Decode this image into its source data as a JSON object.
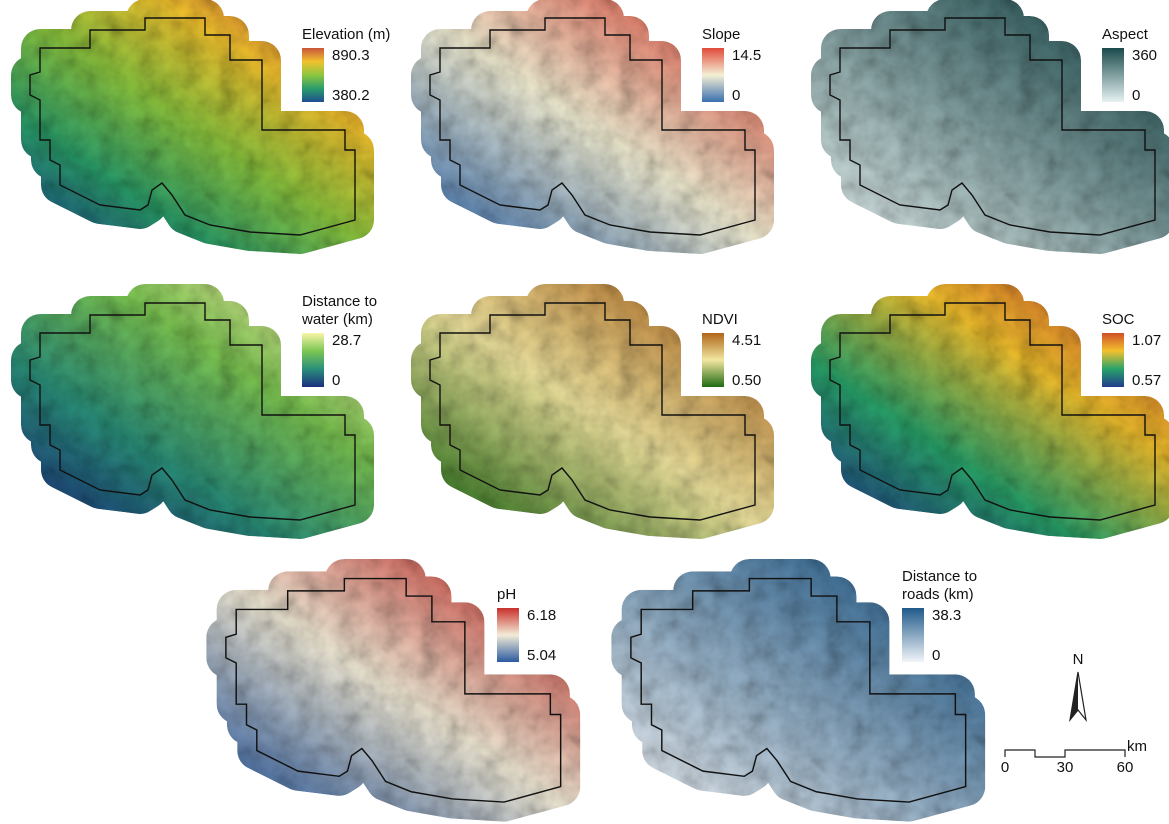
{
  "panels": [
    {
      "title": [
        "Elevation (m)"
      ],
      "max": 890.3,
      "min": 380.2,
      "colors": [
        "#1d4e8f",
        "#2a9d6a",
        "#8cc63f",
        "#f2c12e",
        "#c8553d"
      ]
    },
    {
      "title": [
        "Slope"
      ],
      "max": 14.5,
      "min": 0,
      "colors": [
        "#3a6fb0",
        "#f5f0d5",
        "#e04a3a"
      ]
    },
    {
      "title": [
        "Aspect"
      ],
      "max": 360,
      "min": 0,
      "colors": [
        "#e6f2f2",
        "#1a4a4c"
      ]
    },
    {
      "title": [
        "Distance to",
        "water (km)"
      ],
      "max": 28.7,
      "min": 0,
      "colors": [
        "#1b2f80",
        "#2a8f7a",
        "#7cc652",
        "#f9f5a8"
      ]
    },
    {
      "title": [
        "NDVI"
      ],
      "max": 4.51,
      "min": {
        "value": 0.5,
        "label": "0.50"
      },
      "colors": [
        "#1f6b12",
        "#f2e6a0",
        "#b0651a"
      ]
    },
    {
      "title": [
        "SOC"
      ],
      "max": 1.07,
      "min": 0.57,
      "colors": [
        "#213b8c",
        "#29a36a",
        "#f2c12e",
        "#d0502a"
      ]
    },
    {
      "title": [
        "pH"
      ],
      "max": 6.18,
      "min": 5.04,
      "colors": [
        "#2a5aa0",
        "#f4ecd8",
        "#c8302a"
      ]
    },
    {
      "title": [
        "Distance to",
        "roads (km)"
      ],
      "max": 38.3,
      "min": 0,
      "colors": [
        "#f1f5f9",
        "#1f5a8a"
      ]
    }
  ],
  "north": "N",
  "scale_bar": {
    "ticks": [
      0,
      30,
      60
    ],
    "unit": "km"
  }
}
